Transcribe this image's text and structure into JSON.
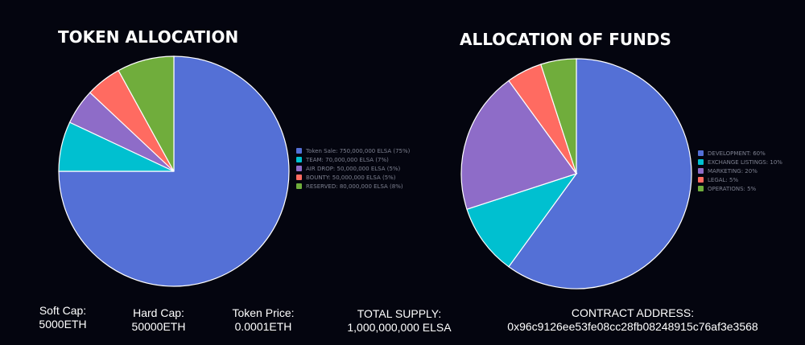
{
  "chart_data": [
    {
      "type": "pie",
      "title": "TOKEN ALLOCATION",
      "legend_position": "right",
      "slices": [
        {
          "label": "Token Sale: 750,000,000 ELSA (75%)",
          "value": 75,
          "color": "#5470d6"
        },
        {
          "label": "TEAM: 70,000,000 ELSA (7%)",
          "value": 7,
          "color": "#00c0d0"
        },
        {
          "label": "AIR DROP: 50,000,000 ELSA (5%)",
          "value": 5,
          "color": "#8e6cc8"
        },
        {
          "label": "BOUNTY: 50,000,000 ELSA (5%)",
          "value": 5,
          "color": "#ff6b61"
        },
        {
          "label": "RESERVED: 80,000,000 ELSA (8%)",
          "value": 8,
          "color": "#70ad3c"
        }
      ]
    },
    {
      "type": "pie",
      "title": "ALLOCATION OF FUNDS",
      "legend_position": "right",
      "slices": [
        {
          "label": "DEVELOPMENT: 60%",
          "value": 60,
          "color": "#5470d6"
        },
        {
          "label": "EXCHANGE LISTINGS: 10%",
          "value": 10,
          "color": "#00c0d0"
        },
        {
          "label": "MARKETING: 20%",
          "value": 20,
          "color": "#8e6cc8"
        },
        {
          "label": "LEGAL: 5%",
          "value": 5,
          "color": "#ff6b61"
        },
        {
          "label": "OPERATIONS: 5%",
          "value": 5,
          "color": "#70ad3c"
        }
      ]
    }
  ],
  "footer": {
    "soft_cap": {
      "label": "Soft Cap:",
      "value": "5000ETH"
    },
    "hard_cap": {
      "label": "Hard Cap:",
      "value": "50000ETH"
    },
    "token_price": {
      "label": "Token Price:",
      "value": "0.0001ETH"
    },
    "total_supply": {
      "label": "TOTAL SUPPLY:",
      "value": "1,000,000,000 ELSA"
    },
    "contract_address": {
      "label": "CONTRACT ADDRESS:",
      "value": "0x96c9126ee53fe08cc28fb08248915c76af3e3568"
    }
  }
}
